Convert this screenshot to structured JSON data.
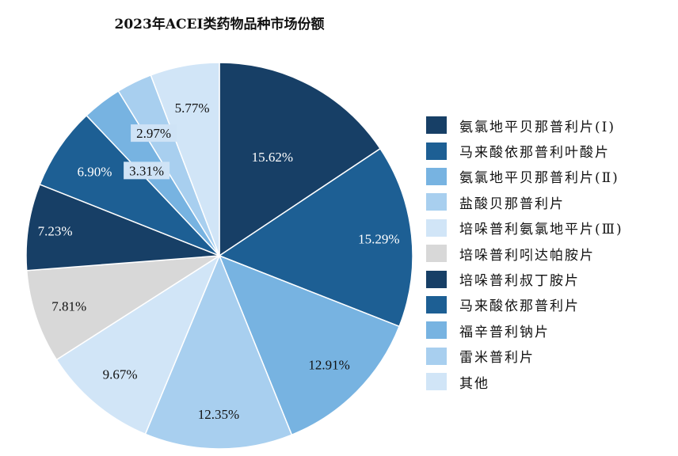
{
  "chart_data": {
    "type": "pie",
    "title": "2023年ACEI类药物品种市场份额",
    "categories": [
      "氨氯地平贝那普利片(Ⅰ)",
      "马来酸依那普利叶酸片",
      "氨氯地平贝那普利片(Ⅱ)",
      "盐酸贝那普利片",
      "培哚普利氨氯地平片(Ⅲ)",
      "培哚普利吲达帕胺片",
      "培哚普利叔丁胺片",
      "马来酸依那普利片",
      "福辛普利钠片",
      "雷米普利片",
      "其他"
    ],
    "values": [
      15.62,
      15.29,
      12.91,
      12.35,
      9.67,
      7.81,
      7.23,
      6.9,
      3.31,
      2.97,
      5.77
    ],
    "data_labels": [
      "15.62%",
      "15.29%",
      "12.91%",
      "12.35%",
      "9.67%",
      "7.81%",
      "7.23%",
      "6.90%",
      "3.31%",
      "2.97%",
      "5.77%"
    ],
    "colors": [
      "#173f66",
      "#1d5f94",
      "#77b3e1",
      "#a8cfef",
      "#d1e5f7",
      "#d8d8d8",
      "#173f66",
      "#1d5f94",
      "#77b3e1",
      "#a8cfef",
      "#d1e5f7"
    ],
    "label_colors": [
      "#ffffff",
      "#ffffff",
      "#111111",
      "#111111",
      "#111111",
      "#111111",
      "#ffffff",
      "#ffffff",
      "#111111",
      "#111111",
      "#111111"
    ],
    "legend_position": "right",
    "start_angle_deg": 0,
    "direction": "clockwise"
  }
}
